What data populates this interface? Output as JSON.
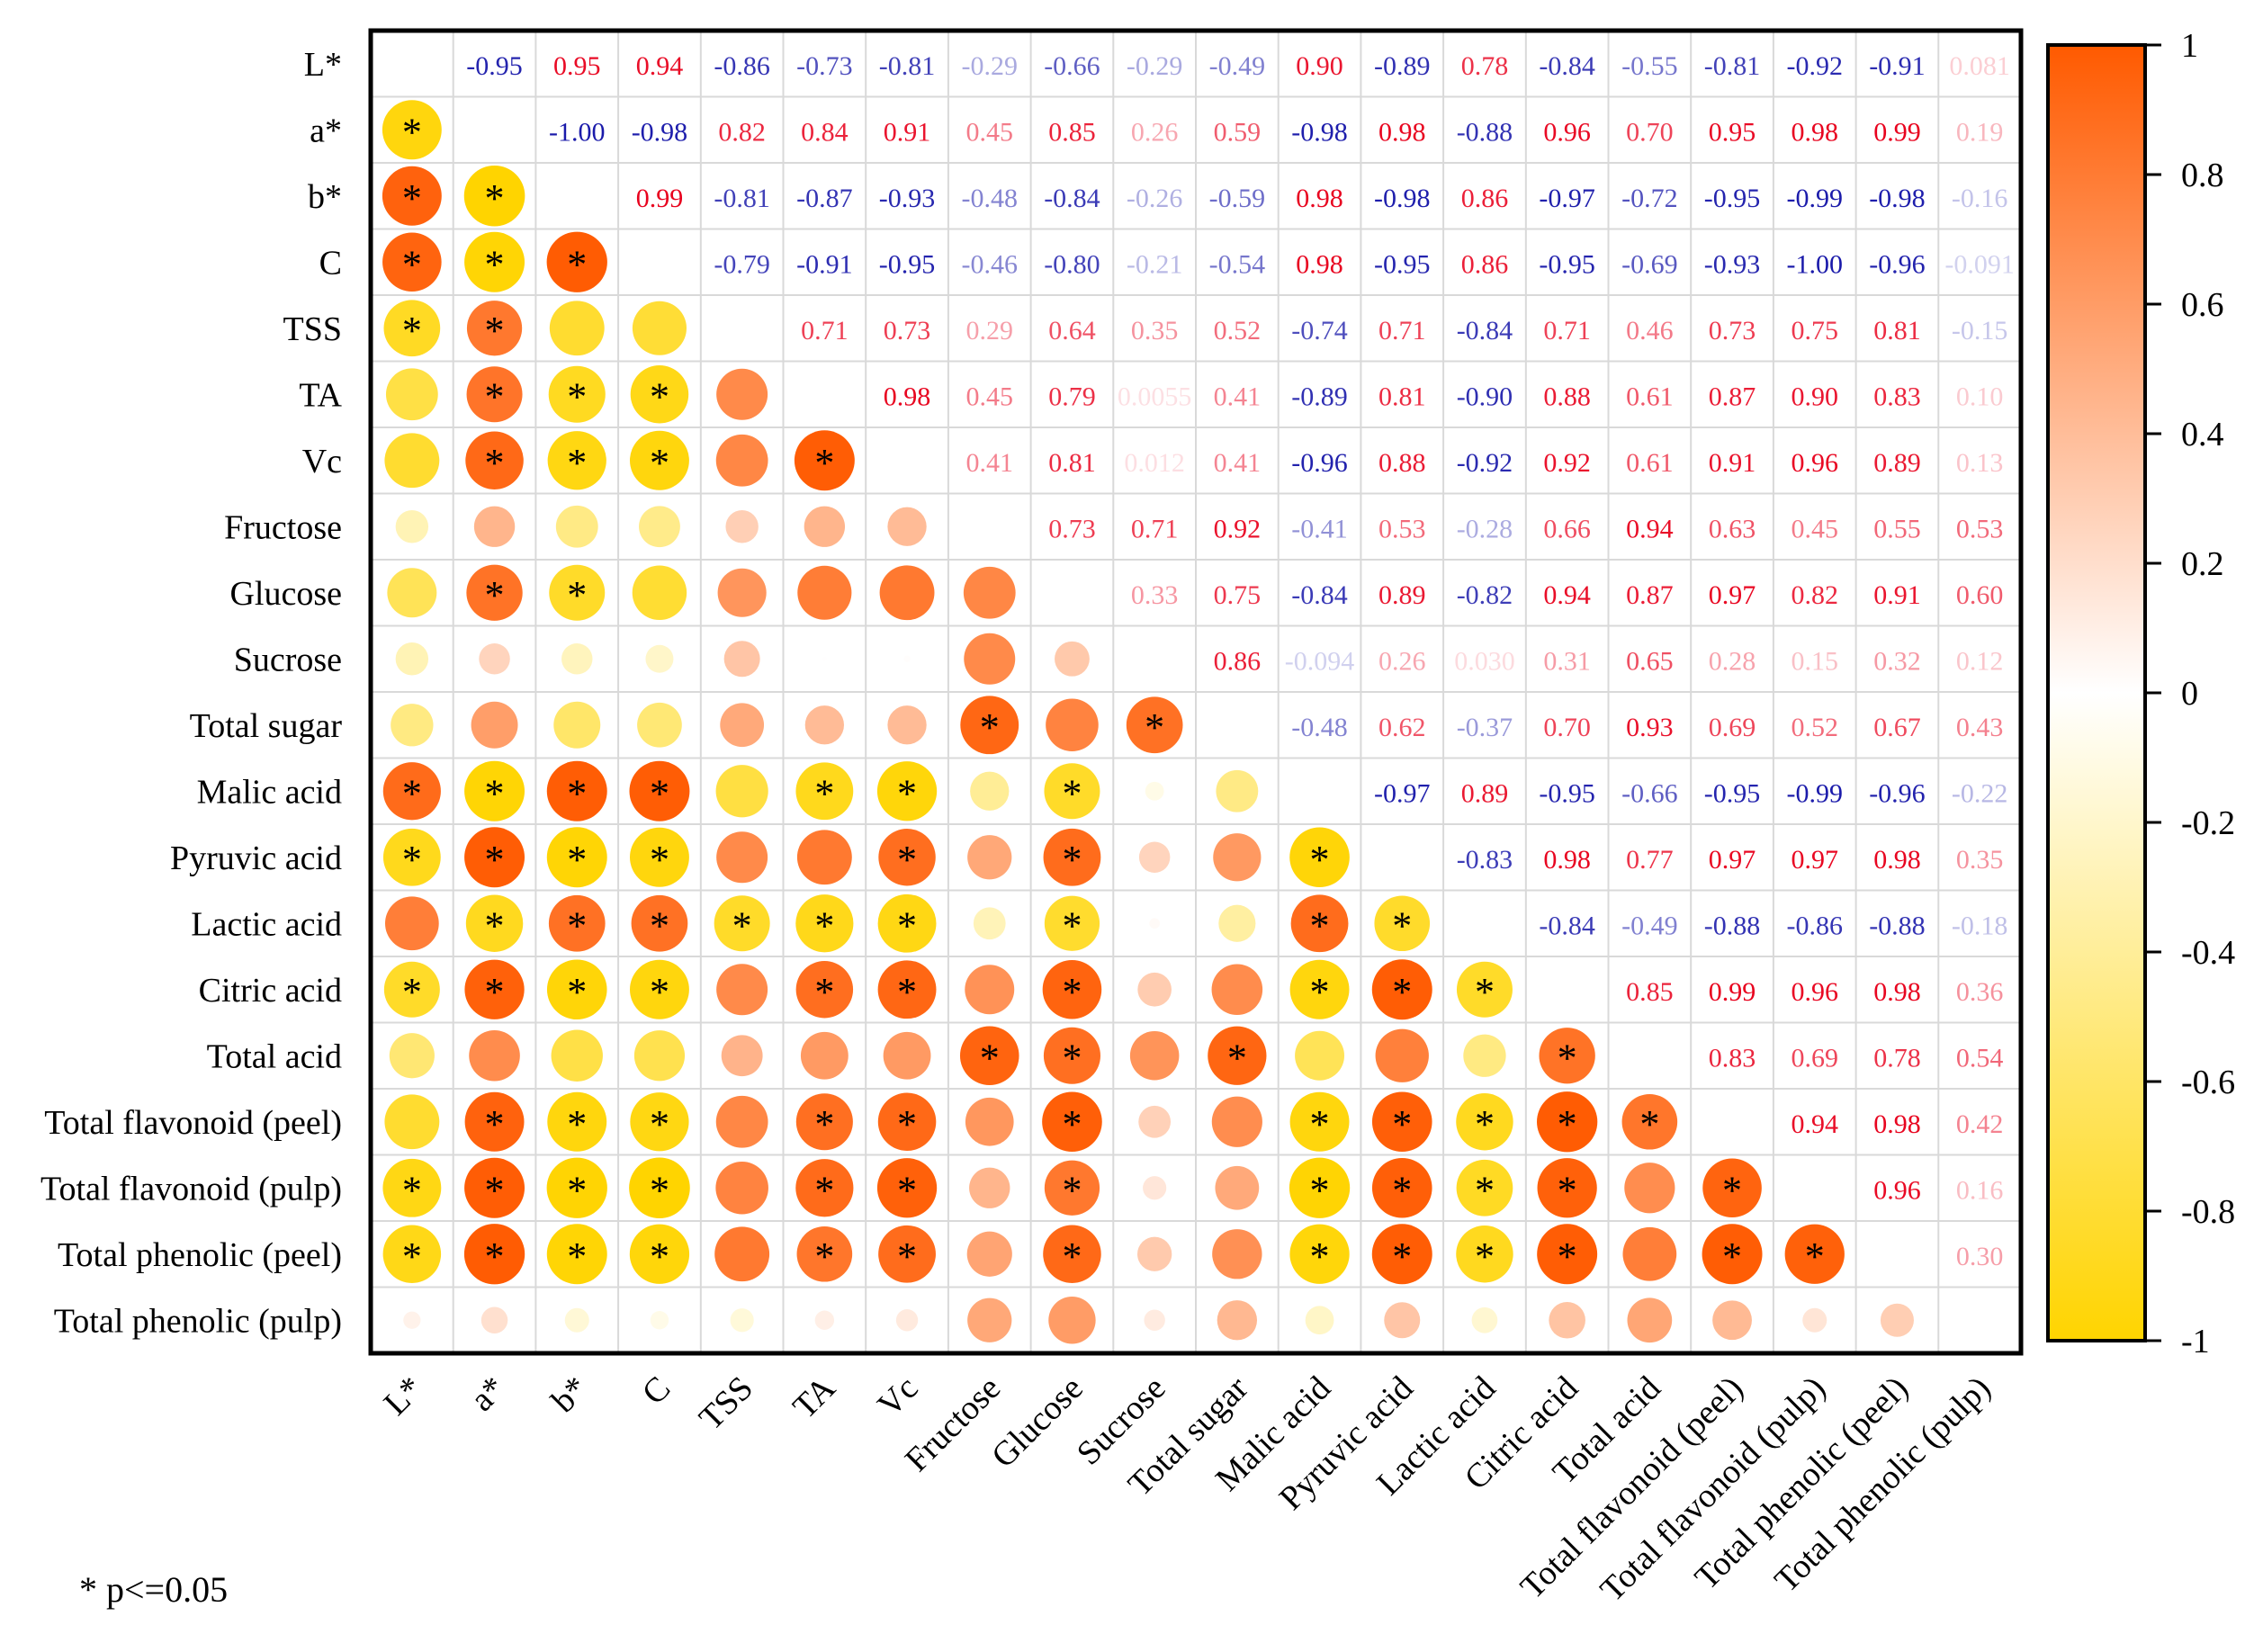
{
  "chart_data": {
    "type": "heatmap",
    "variables": [
      "L*",
      "a*",
      "b*",
      "C",
      "TSS",
      "TA",
      "Vc",
      "Fructose",
      "Glucose",
      "Sucrose",
      "Total sugar",
      "Malic acid",
      "Pyruvic acid",
      "Lactic acid",
      "Citric acid",
      "Total acid",
      "Total flavonoid (peel)",
      "Total flavonoid (pulp)",
      "Total phenolic (peel)",
      "Total phenolic (pulp)"
    ],
    "upper_triangle_labels": [
      [
        "",
        "-0.95",
        "0.95",
        "0.94",
        "-0.86",
        "-0.73",
        "-0.81",
        "-0.29",
        "-0.66",
        "-0.29",
        "-0.49",
        "0.90",
        "-0.89",
        "0.78",
        "-0.84",
        "-0.55",
        "-0.81",
        "-0.92",
        "-0.91",
        "0.081"
      ],
      [
        "",
        "",
        "-1.00",
        "-0.98",
        "0.82",
        "0.84",
        "0.91",
        "0.45",
        "0.85",
        "0.26",
        "0.59",
        "-0.98",
        "0.98",
        "-0.88",
        "0.96",
        "0.70",
        "0.95",
        "0.98",
        "0.99",
        "0.19"
      ],
      [
        "",
        "",
        "",
        "0.99",
        "-0.81",
        "-0.87",
        "-0.93",
        "-0.48",
        "-0.84",
        "-0.26",
        "-0.59",
        "0.98",
        "-0.98",
        "0.86",
        "-0.97",
        "-0.72",
        "-0.95",
        "-0.99",
        "-0.98",
        "-0.16"
      ],
      [
        "",
        "",
        "",
        "",
        "-0.79",
        "-0.91",
        "-0.95",
        "-0.46",
        "-0.80",
        "-0.21",
        "-0.54",
        "0.98",
        "-0.95",
        "0.86",
        "-0.95",
        "-0.69",
        "-0.93",
        "-1.00",
        "-0.96",
        "-0.091"
      ],
      [
        "",
        "",
        "",
        "",
        "",
        "0.71",
        "0.73",
        "0.29",
        "0.64",
        "0.35",
        "0.52",
        "-0.74",
        "0.71",
        "-0.84",
        "0.71",
        "0.46",
        "0.73",
        "0.75",
        "0.81",
        "-0.15"
      ],
      [
        "",
        "",
        "",
        "",
        "",
        "",
        "0.98",
        "0.45",
        "0.79",
        "0.0055",
        "0.41",
        "-0.89",
        "0.81",
        "-0.90",
        "0.88",
        "0.61",
        "0.87",
        "0.90",
        "0.83",
        "0.10"
      ],
      [
        "",
        "",
        "",
        "",
        "",
        "",
        "",
        "0.41",
        "0.81",
        "0.012",
        "0.41",
        "-0.96",
        "0.88",
        "-0.92",
        "0.92",
        "0.61",
        "0.91",
        "0.96",
        "0.89",
        "0.13"
      ],
      [
        "",
        "",
        "",
        "",
        "",
        "",
        "",
        "",
        "0.73",
        "0.71",
        "0.92",
        "-0.41",
        "0.53",
        "-0.28",
        "0.66",
        "0.94",
        "0.63",
        "0.45",
        "0.55",
        "0.53"
      ],
      [
        "",
        "",
        "",
        "",
        "",
        "",
        "",
        "",
        "",
        "0.33",
        "0.75",
        "-0.84",
        "0.89",
        "-0.82",
        "0.94",
        "0.87",
        "0.97",
        "0.82",
        "0.91",
        "0.60"
      ],
      [
        "",
        "",
        "",
        "",
        "",
        "",
        "",
        "",
        "",
        "",
        "0.86",
        "-0.094",
        "0.26",
        "0.030",
        "0.31",
        "0.65",
        "0.28",
        "0.15",
        "0.32",
        "0.12"
      ],
      [
        "",
        "",
        "",
        "",
        "",
        "",
        "",
        "",
        "",
        "",
        "",
        "-0.48",
        "0.62",
        "-0.37",
        "0.70",
        "0.93",
        "0.69",
        "0.52",
        "0.67",
        "0.43"
      ],
      [
        "",
        "",
        "",
        "",
        "",
        "",
        "",
        "",
        "",
        "",
        "",
        "",
        "-0.97",
        "0.89",
        "-0.95",
        "-0.66",
        "-0.95",
        "-0.99",
        "-0.96",
        "-0.22"
      ],
      [
        "",
        "",
        "",
        "",
        "",
        "",
        "",
        "",
        "",
        "",
        "",
        "",
        "",
        "-0.83",
        "0.98",
        "0.77",
        "0.97",
        "0.97",
        "0.98",
        "0.35"
      ],
      [
        "",
        "",
        "",
        "",
        "",
        "",
        "",
        "",
        "",
        "",
        "",
        "",
        "",
        "",
        "-0.84",
        "-0.49",
        "-0.88",
        "-0.86",
        "-0.88",
        "-0.18"
      ],
      [
        "",
        "",
        "",
        "",
        "",
        "",
        "",
        "",
        "",
        "",
        "",
        "",
        "",
        "",
        "",
        "0.85",
        "0.99",
        "0.96",
        "0.98",
        "0.36"
      ],
      [
        "",
        "",
        "",
        "",
        "",
        "",
        "",
        "",
        "",
        "",
        "",
        "",
        "",
        "",
        "",
        "",
        "0.83",
        "0.69",
        "0.78",
        "0.54"
      ],
      [
        "",
        "",
        "",
        "",
        "",
        "",
        "",
        "",
        "",
        "",
        "",
        "",
        "",
        "",
        "",
        "",
        "",
        "0.94",
        "0.98",
        "0.42"
      ],
      [
        "",
        "",
        "",
        "",
        "",
        "",
        "",
        "",
        "",
        "",
        "",
        "",
        "",
        "",
        "",
        "",
        "",
        "",
        "0.96",
        "0.16"
      ],
      [
        "",
        "",
        "",
        "",
        "",
        "",
        "",
        "",
        "",
        "",
        "",
        "",
        "",
        "",
        "",
        "",
        "",
        "",
        "",
        "0.30"
      ],
      [
        "",
        "",
        "",
        "",
        "",
        "",
        "",
        "",
        "",
        "",
        "",
        "",
        "",
        "",
        "",
        "",
        "",
        "",
        "",
        ""
      ]
    ],
    "significance_marker": "*",
    "significance_note": "* p<=0.05",
    "colorbar": {
      "min": -1,
      "max": 1,
      "ticks": [
        "1",
        "0.8",
        "0.6",
        "0.4",
        "0.2",
        "0",
        "-0.2",
        "-0.4",
        "-0.6",
        "-0.8",
        "-1"
      ],
      "neg_color": "#FFD400",
      "mid_color": "#FFFFFF",
      "pos_color": "#FF5A00"
    },
    "label_colors": {
      "positive": "#E8001C",
      "negative": "#1A1AAA"
    }
  }
}
